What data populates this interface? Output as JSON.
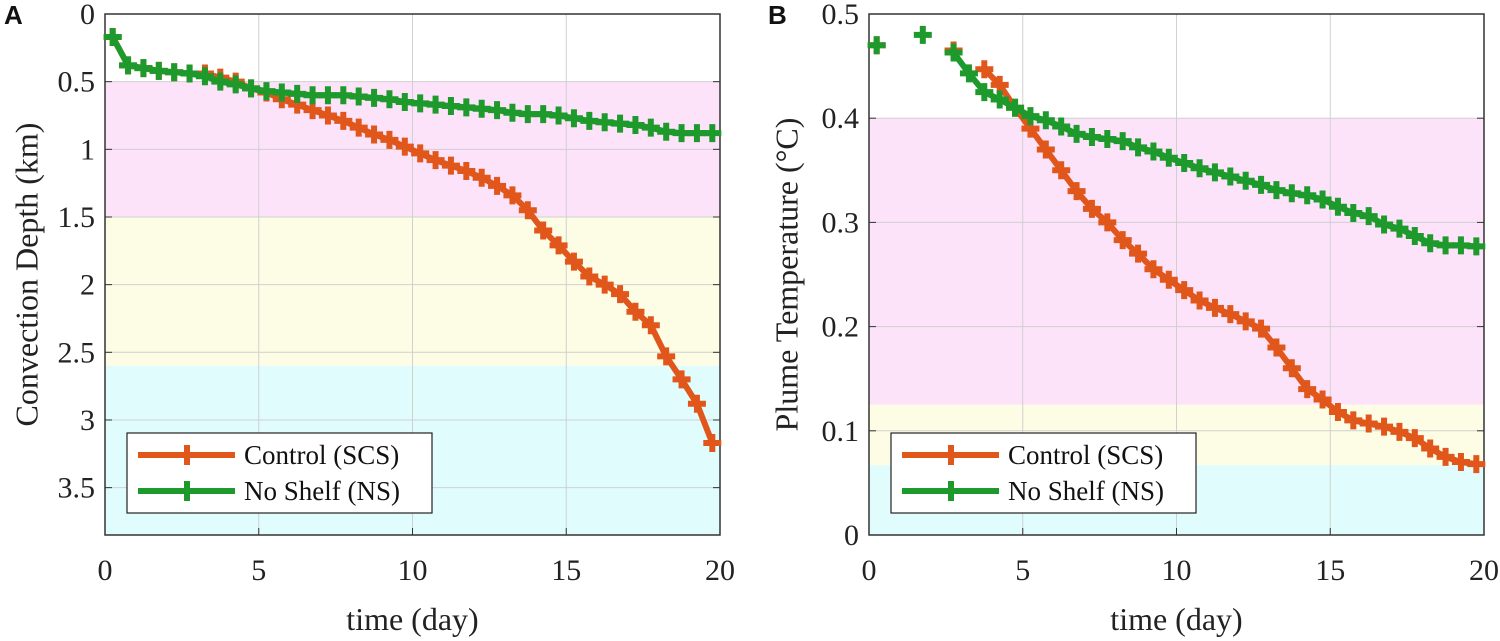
{
  "colors": {
    "control": "#e0561b",
    "noshelf": "#1d9a2b",
    "pink": "#fce3fa",
    "yellow": "#fdfde6",
    "cyan": "#e0fcfc",
    "grid": "#d0d0d0"
  },
  "chart_data": [
    {
      "type": "line",
      "panel_label": "A",
      "xlabel": "time (day)",
      "ylabel": "Convection Depth (km)",
      "xlim": [
        0,
        20
      ],
      "ylim": [
        0,
        3.85
      ],
      "y_reversed": true,
      "xticks": [
        "0",
        "5",
        "10",
        "15",
        "20"
      ],
      "xtick_values": [
        0,
        5,
        10,
        15,
        20
      ],
      "yticks": [
        "0",
        "0.5",
        "1",
        "1.5",
        "2",
        "2.5",
        "3",
        "3.5"
      ],
      "ytick_values": [
        0,
        0.5,
        1,
        1.5,
        2,
        2.5,
        3,
        3.5
      ],
      "grid": true,
      "legend_position": "bottom-left",
      "bands": [
        {
          "from": 0.5,
          "to": 1.5,
          "color": "pink"
        },
        {
          "from": 1.5,
          "to": 2.6,
          "color": "yellow"
        },
        {
          "from": 2.6,
          "to": 3.85,
          "color": "cyan"
        }
      ],
      "series": [
        {
          "name": "Control (SCS)",
          "color": "control",
          "x": [
            0.25,
            0.75,
            1.25,
            1.75,
            2.25,
            2.75,
            3.25,
            3.75,
            4.25,
            4.75,
            5.25,
            5.75,
            6.25,
            6.75,
            7.25,
            7.75,
            8.25,
            8.75,
            9.25,
            9.75,
            10.25,
            10.75,
            11.25,
            11.75,
            12.25,
            12.75,
            13.25,
            13.75,
            14.25,
            14.75,
            15.25,
            15.75,
            16.25,
            16.75,
            17.25,
            17.75,
            18.25,
            18.75,
            19.25,
            19.75
          ],
          "y": [
            0.17,
            0.38,
            0.4,
            0.42,
            0.43,
            0.44,
            0.44,
            0.47,
            0.5,
            0.55,
            0.58,
            0.63,
            0.67,
            0.71,
            0.75,
            0.79,
            0.84,
            0.89,
            0.93,
            0.98,
            1.03,
            1.08,
            1.12,
            1.16,
            1.21,
            1.27,
            1.34,
            1.45,
            1.6,
            1.71,
            1.83,
            1.94,
            2.0,
            2.07,
            2.2,
            2.3,
            2.53,
            2.7,
            2.88,
            3.17
          ]
        },
        {
          "name": "No Shelf (NS)",
          "color": "noshelf",
          "x": [
            0.25,
            0.75,
            1.25,
            1.75,
            2.25,
            2.75,
            3.25,
            3.75,
            4.25,
            4.75,
            5.25,
            5.75,
            6.25,
            6.75,
            7.25,
            7.75,
            8.25,
            8.75,
            9.25,
            9.75,
            10.25,
            10.75,
            11.25,
            11.75,
            12.25,
            12.75,
            13.25,
            13.75,
            14.25,
            14.75,
            15.25,
            15.75,
            16.25,
            16.75,
            17.25,
            17.75,
            18.25,
            18.75,
            19.25,
            19.75
          ],
          "y": [
            0.17,
            0.38,
            0.4,
            0.42,
            0.43,
            0.44,
            0.46,
            0.5,
            0.52,
            0.55,
            0.57,
            0.58,
            0.59,
            0.6,
            0.6,
            0.6,
            0.61,
            0.62,
            0.63,
            0.65,
            0.66,
            0.67,
            0.68,
            0.69,
            0.7,
            0.71,
            0.73,
            0.74,
            0.74,
            0.75,
            0.77,
            0.79,
            0.8,
            0.81,
            0.82,
            0.84,
            0.87,
            0.88,
            0.88,
            0.88
          ]
        }
      ]
    },
    {
      "type": "line",
      "panel_label": "B",
      "xlabel": "time (day)",
      "ylabel": "Plume Temperature (°C)",
      "xlim": [
        0,
        20
      ],
      "ylim": [
        0,
        0.5
      ],
      "y_reversed": false,
      "xticks": [
        "0",
        "5",
        "10",
        "15",
        "20"
      ],
      "xtick_values": [
        0,
        5,
        10,
        15,
        20
      ],
      "yticks": [
        "0",
        "0.1",
        "0.2",
        "0.3",
        "0.4",
        "0.5"
      ],
      "ytick_values": [
        0,
        0.1,
        0.2,
        0.3,
        0.4,
        0.5
      ],
      "grid": true,
      "legend_position": "bottom-left",
      "bands": [
        {
          "from": 0.125,
          "to": 0.4,
          "color": "pink"
        },
        {
          "from": 0.067,
          "to": 0.125,
          "color": "yellow"
        },
        {
          "from": 0,
          "to": 0.067,
          "color": "cyan"
        }
      ],
      "series": [
        {
          "name": "Control (SCS)",
          "color": "control",
          "x": [
            0.25,
            2.75,
            3.75,
            4.25,
            4.75,
            5.25,
            5.75,
            6.25,
            6.75,
            7.25,
            7.75,
            8.25,
            8.75,
            9.25,
            9.75,
            10.25,
            10.75,
            11.25,
            11.75,
            12.25,
            12.75,
            13.25,
            13.75,
            14.25,
            14.75,
            15.25,
            15.75,
            16.25,
            16.75,
            17.25,
            17.75,
            18.25,
            18.75,
            19.25,
            19.75
          ],
          "y": [
            0.47,
            0.465,
            0.447,
            0.432,
            0.41,
            0.39,
            0.37,
            0.35,
            0.33,
            0.313,
            0.3,
            0.283,
            0.27,
            0.255,
            0.245,
            0.235,
            0.225,
            0.218,
            0.212,
            0.205,
            0.198,
            0.18,
            0.16,
            0.14,
            0.13,
            0.118,
            0.11,
            0.107,
            0.104,
            0.099,
            0.093,
            0.083,
            0.075,
            0.07,
            0.068
          ]
        },
        {
          "name": "No Shelf (NS)",
          "color": "noshelf",
          "x": [
            0.25,
            1.75,
            2.75,
            3.25,
            3.75,
            4.25,
            4.75,
            5.25,
            5.75,
            6.25,
            6.75,
            7.25,
            7.75,
            8.25,
            8.75,
            9.25,
            9.75,
            10.25,
            10.75,
            11.25,
            11.75,
            12.25,
            12.75,
            13.25,
            13.75,
            14.25,
            14.75,
            15.25,
            15.75,
            16.25,
            16.75,
            17.25,
            17.75,
            18.25,
            18.75,
            19.25,
            19.75
          ],
          "y": [
            0.47,
            0.48,
            0.463,
            0.443,
            0.425,
            0.418,
            0.41,
            0.402,
            0.398,
            0.392,
            0.385,
            0.382,
            0.38,
            0.378,
            0.372,
            0.368,
            0.362,
            0.357,
            0.352,
            0.348,
            0.344,
            0.34,
            0.336,
            0.331,
            0.328,
            0.326,
            0.322,
            0.315,
            0.309,
            0.306,
            0.298,
            0.294,
            0.287,
            0.28,
            0.278,
            0.278,
            0.277
          ]
        }
      ]
    }
  ]
}
